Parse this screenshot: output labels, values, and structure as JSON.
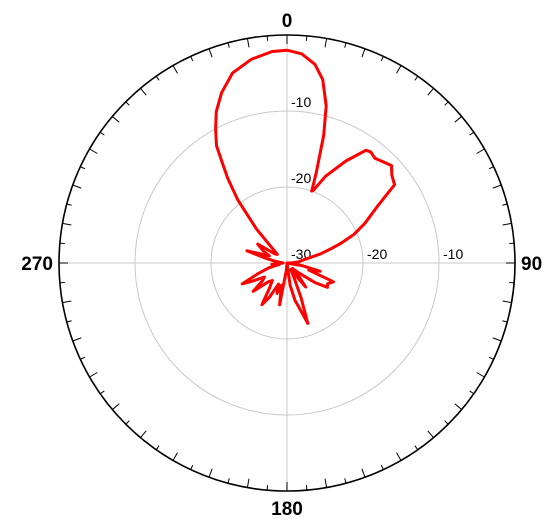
{
  "chart_data": {
    "type": "polar-line",
    "title": "",
    "angle_unit": "degrees",
    "angle_direction": "clockwise",
    "angle_zero": "top",
    "angle_ticks": [
      {
        "angle": 0,
        "label": "0"
      },
      {
        "angle": 90,
        "label": "90"
      },
      {
        "angle": 180,
        "label": "180"
      },
      {
        "angle": 270,
        "label": "270"
      }
    ],
    "radial_range": [
      -30,
      0
    ],
    "radial_ticks": [
      {
        "value": -30,
        "label": "-30"
      },
      {
        "value": -20,
        "label": "-20"
      },
      {
        "value": -10,
        "label": "-10"
      }
    ],
    "grid": true,
    "series": [
      {
        "color": "#ff0000",
        "points": [
          [
            0,
            -2
          ],
          [
            4,
            -2.4
          ],
          [
            8,
            -3.6
          ],
          [
            11,
            -5.4
          ],
          [
            14,
            -8.7
          ],
          [
            16,
            -12.5
          ],
          [
            18,
            -17.6
          ],
          [
            19,
            -20
          ],
          [
            20,
            -19.8
          ],
          [
            24,
            -17.5
          ],
          [
            30,
            -14.5
          ],
          [
            35,
            -11.9
          ],
          [
            37,
            -11.7
          ],
          [
            40,
            -12
          ],
          [
            43,
            -11.7
          ],
          [
            47,
            -11.2
          ],
          [
            50,
            -12
          ],
          [
            54,
            -12.5
          ],
          [
            56,
            -14.5
          ],
          [
            58,
            -16
          ],
          [
            63,
            -18.5
          ],
          [
            67,
            -20.5
          ],
          [
            70,
            -22.5
          ],
          [
            72,
            -23.9
          ],
          [
            75,
            -25.5
          ],
          [
            80,
            -28
          ],
          [
            85,
            -28.5
          ],
          [
            90,
            -29.5
          ],
          [
            95,
            -30
          ],
          [
            100,
            -28
          ],
          [
            104,
            -25.5
          ],
          [
            108,
            -27
          ],
          [
            112,
            -23.4
          ],
          [
            117,
            -24
          ],
          [
            121,
            -23.8
          ],
          [
            125,
            -25.5
          ],
          [
            130,
            -28
          ],
          [
            135,
            -29
          ],
          [
            139,
            -27.5
          ],
          [
            142,
            -26
          ],
          [
            145,
            -28
          ],
          [
            150,
            -29
          ],
          [
            155,
            -27.5
          ],
          [
            158,
            -25
          ],
          [
            161,
            -21.6
          ],
          [
            165,
            -24
          ],
          [
            168,
            -25
          ],
          [
            172,
            -27
          ],
          [
            178,
            -30
          ],
          [
            185,
            -29
          ],
          [
            190,
            -24.4
          ],
          [
            194,
            -27
          ],
          [
            198,
            -25.8
          ],
          [
            202,
            -27
          ],
          [
            207,
            -25
          ],
          [
            211,
            -23.6
          ],
          [
            215,
            -26
          ],
          [
            220,
            -27
          ],
          [
            225,
            -26.5
          ],
          [
            230,
            -24.2
          ],
          [
            234,
            -26
          ],
          [
            238,
            -26.5
          ],
          [
            242,
            -25
          ],
          [
            245,
            -23.5
          ],
          [
            250,
            -26
          ],
          [
            255,
            -27.5
          ],
          [
            260,
            -29
          ],
          [
            265,
            -28
          ],
          [
            270,
            -29.5
          ],
          [
            278,
            -28.5
          ],
          [
            283,
            -27
          ],
          [
            287,
            -24.5
          ],
          [
            292,
            -27.5
          ],
          [
            297,
            -26.5
          ],
          [
            303,
            -25.4
          ],
          [
            307,
            -28
          ],
          [
            312,
            -28.3
          ],
          [
            318,
            -24
          ],
          [
            322,
            -19.5
          ],
          [
            325,
            -16.4
          ],
          [
            327,
            -14.5
          ],
          [
            329,
            -12
          ],
          [
            332,
            -10
          ],
          [
            335,
            -8
          ],
          [
            339,
            -6
          ],
          [
            344,
            -4
          ],
          [
            350,
            -2.8
          ],
          [
            356,
            -2.1
          ],
          [
            360,
            -2
          ]
        ]
      }
    ]
  }
}
